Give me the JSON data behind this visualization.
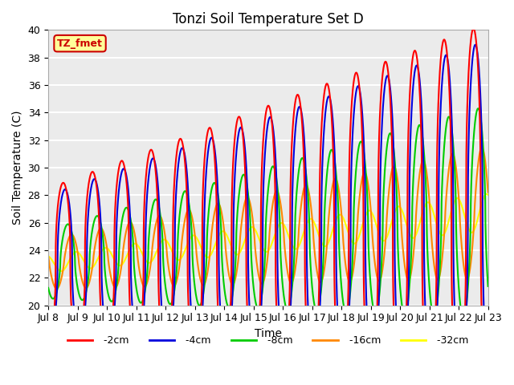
{
  "title": "Tonzi Soil Temperature Set D",
  "xlabel": "Time",
  "ylabel": "Soil Temperature (C)",
  "ylim": [
    20,
    40
  ],
  "annotation_text": "TZ_fmet",
  "annotation_bg": "#ffff99",
  "annotation_edge": "#cc0000",
  "annotation_text_color": "#cc0000",
  "bg_color": "#ebebeb",
  "line_colors": {
    "-2cm": "#ff0000",
    "-4cm": "#0000dd",
    "-8cm": "#00cc00",
    "-16cm": "#ff8800",
    "-32cm": "#ffff00"
  },
  "x_tick_labels": [
    "Jul 8",
    "Jul 9",
    "Jul 10",
    "Jul 11",
    "Jul 12",
    "Jul 13",
    "Jul 14",
    "Jul 15",
    "Jul 16",
    "Jul 17",
    "Jul 18",
    "Jul 19",
    "Jul 20",
    "Jul 21",
    "Jul 22",
    "Jul 23"
  ],
  "x_tick_positions": [
    0,
    1,
    2,
    3,
    4,
    5,
    6,
    7,
    8,
    9,
    10,
    11,
    12,
    13,
    14,
    15
  ],
  "legend_labels": [
    "-2cm",
    "-4cm",
    "-8cm",
    "-16cm",
    "-32cm"
  ]
}
